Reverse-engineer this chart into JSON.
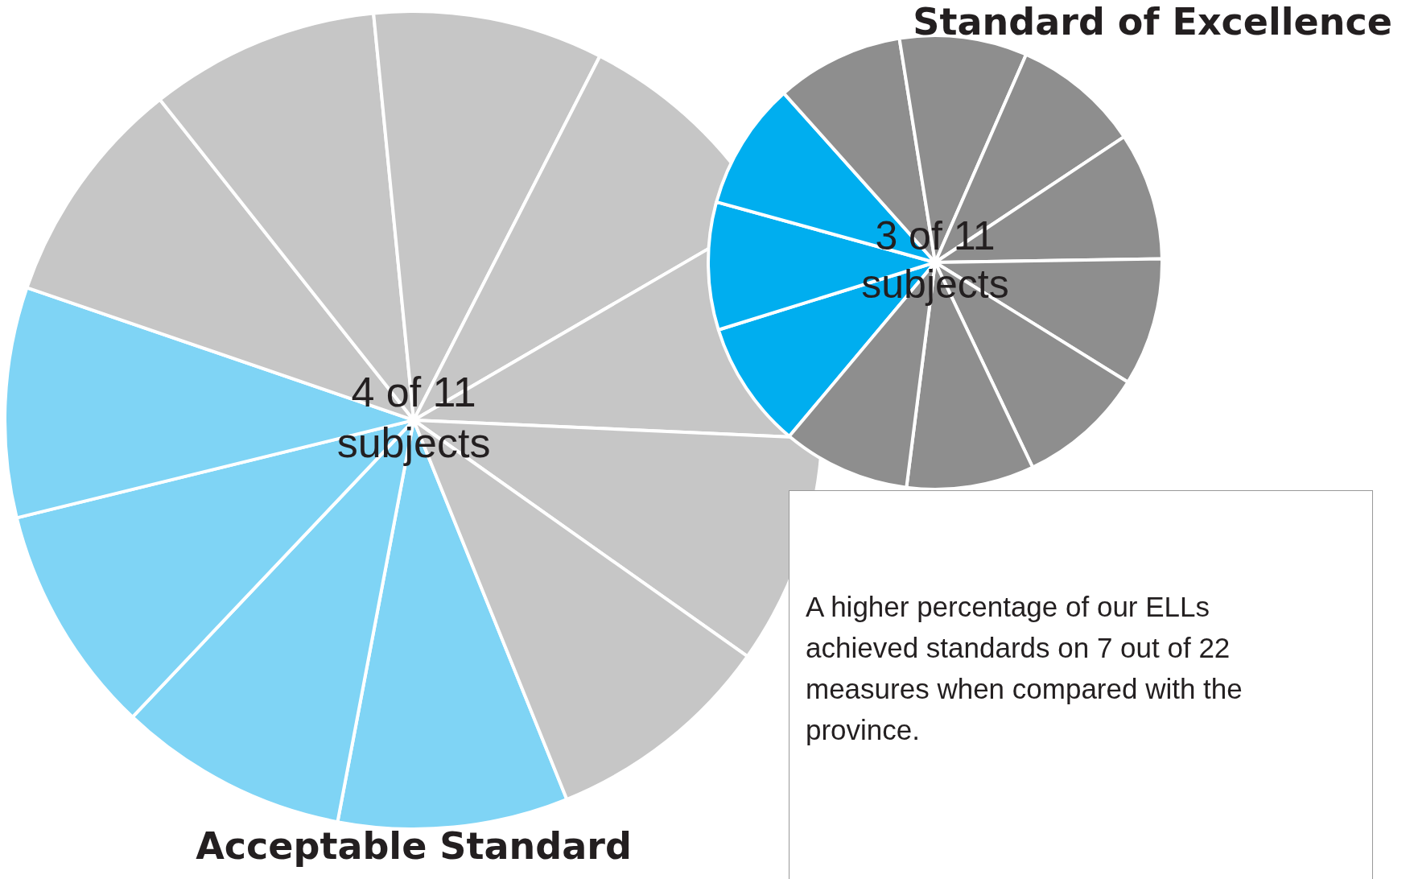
{
  "chart_data": [
    {
      "type": "pie",
      "title": "Acceptable Standard",
      "categories": [
        null,
        null,
        null,
        null,
        null,
        null,
        null,
        null,
        null,
        null,
        null
      ],
      "values": [
        9.09,
        9.09,
        9.09,
        9.09,
        9.09,
        9.09,
        9.09,
        9.09,
        9.09,
        9.09,
        9.09
      ],
      "colors": [
        "#7fd4f5",
        "#7fd4f5",
        "#7fd4f5",
        "#7fd4f5",
        "#c6c6c6",
        "#c6c6c6",
        "#c6c6c6",
        "#c6c6c6",
        "#c6c6c6",
        "#c6c6c6",
        "#c6c6c6"
      ],
      "legend": false,
      "annotations": [
        "4 of 11 subjects"
      ]
    },
    {
      "type": "pie",
      "title": "Standard of Excellence",
      "categories": [
        null,
        null,
        null,
        null,
        null,
        null,
        null,
        null,
        null,
        null,
        null
      ],
      "values": [
        9.09,
        9.09,
        9.09,
        9.09,
        9.09,
        9.09,
        9.09,
        9.09,
        9.09,
        9.09,
        9.09
      ],
      "colors": [
        "#00aeef",
        "#00aeef",
        "#00aeef",
        "#8e8e8e",
        "#8e8e8e",
        "#8e8e8e",
        "#8e8e8e",
        "#8e8e8e",
        "#8e8e8e",
        "#8e8e8e",
        "#8e8e8e"
      ],
      "legend": false,
      "annotations": [
        "3 of 11 subjects",
        "A higher percentage of our ELLs achieved standards on 7 out of 22 measures when compared with the province."
      ]
    }
  ]
}
